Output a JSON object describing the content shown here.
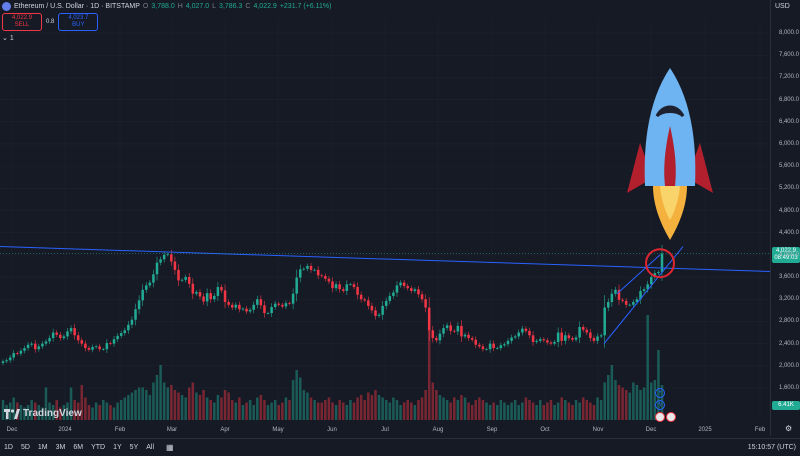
{
  "legend": {
    "title": "Ethereum / U.S. Dollar · 1D · BITSTAMP",
    "o_label": "O",
    "o_value": "3,788.0",
    "h_label": "H",
    "h_value": "4,027.0",
    "l_label": "L",
    "l_value": "3,786.3",
    "c_label": "C",
    "c_value": "4,022.9",
    "change": "+231.7 (+6.11%)"
  },
  "trade": {
    "sell_price": "4,022.9",
    "sell_label": "SELL",
    "spread": "0.8",
    "buy_price": "4,023.7",
    "buy_label": "BUY"
  },
  "indicator_count": "1",
  "currency": "USD",
  "price_axis": {
    "ticks": [
      "8,000.0",
      "7,600.0",
      "7,200.0",
      "6,800.0",
      "6,400.0",
      "6,000.0",
      "5,600.0",
      "5,200.0",
      "4,800.0",
      "4,400.0",
      "4,000.0",
      "3,600.0",
      "3,200.0",
      "2,800.0",
      "2,400.0",
      "2,000.0",
      "1,600.0"
    ],
    "current_price": "4,022.9",
    "countdown": "08:49:03",
    "volume_label": "6.41K"
  },
  "time_axis": {
    "ticks": [
      "Dec",
      "2024",
      "Feb",
      "Mar",
      "Apr",
      "May",
      "Jun",
      "Jul",
      "Aug",
      "Sep",
      "Oct",
      "Nov",
      "Dec",
      "2025",
      "Feb"
    ]
  },
  "brand": "TradingView",
  "timeframes": [
    "1D",
    "5D",
    "1M",
    "3M",
    "6M",
    "YTD",
    "1Y",
    "5Y",
    "All"
  ],
  "clock": "15:10:57 (UTC)",
  "colors": {
    "up": "#22ab94",
    "down": "#f23645",
    "line": "#2962ff",
    "accent": "#2962ff"
  },
  "chart_data": {
    "type": "candlestick",
    "price_range": [
      1600,
      8000
    ],
    "trendline": {
      "from": {
        "date": "2023-12-01",
        "price": 4150
      },
      "to": {
        "date": "2024-12-31",
        "price": 3700
      }
    },
    "support_line": {
      "from": {
        "date": "2024-11-01",
        "price": 2400
      },
      "to": {
        "date": "2024-12-07",
        "price": 4150
      }
    },
    "close": [
      2080,
      2100,
      2150,
      2230,
      2220,
      2270,
      2320,
      2380,
      2400,
      2300,
      2350,
      2400,
      2440,
      2500,
      2600,
      2560,
      2500,
      2530,
      2620,
      2680,
      2550,
      2460,
      2400,
      2320,
      2290,
      2340,
      2350,
      2300,
      2300,
      2410,
      2400,
      2480,
      2540,
      2590,
      2640,
      2740,
      2830,
      3020,
      3180,
      3370,
      3450,
      3500,
      3650,
      3860,
      3920,
      4000,
      4010,
      3880,
      3730,
      3540,
      3550,
      3600,
      3480,
      3300,
      3330,
      3250,
      3160,
      3310,
      3200,
      3260,
      3420,
      3360,
      3150,
      3100,
      3050,
      3100,
      3020,
      3030,
      2980,
      3010,
      3100,
      3200,
      3090,
      2950,
      2950,
      3060,
      3120,
      3100,
      3070,
      3130,
      3120,
      3300,
      3590,
      3740,
      3750,
      3800,
      3730,
      3730,
      3630,
      3620,
      3570,
      3520,
      3400,
      3470,
      3380,
      3350,
      3470,
      3470,
      3420,
      3280,
      3200,
      3180,
      3080,
      3000,
      2900,
      2920,
      3080,
      3170,
      3260,
      3320,
      3450,
      3500,
      3440,
      3400,
      3350,
      3380,
      3290,
      3200,
      3050,
      2640,
      2500,
      2460,
      2580,
      2680,
      2730,
      2630,
      2620,
      2720,
      2530,
      2560,
      2500,
      2470,
      2380,
      2350,
      2300,
      2300,
      2400,
      2320,
      2320,
      2370,
      2390,
      2450,
      2510,
      2530,
      2600,
      2670,
      2630,
      2550,
      2430,
      2450,
      2480,
      2460,
      2420,
      2400,
      2430,
      2600,
      2450,
      2550,
      2500,
      2470,
      2510,
      2700,
      2650,
      2600,
      2500,
      2450,
      2530,
      2550,
      3050,
      3150,
      3300,
      3370,
      3190,
      3170,
      3100,
      3100,
      3150,
      3200,
      3350,
      3380,
      3470,
      3600,
      3670,
      3690,
      4023
    ],
    "volume": [
      0.8,
      0.6,
      0.7,
      0.9,
      0.7,
      0.6,
      0.5,
      0.6,
      0.8,
      0.7,
      0.6,
      0.5,
      1.3,
      0.7,
      0.6,
      0.8,
      0.5,
      0.6,
      0.7,
      1.3,
      0.8,
      0.7,
      1.4,
      0.9,
      0.6,
      0.5,
      0.7,
      0.6,
      0.8,
      0.7,
      0.6,
      0.5,
      0.7,
      0.8,
      0.9,
      1.0,
      1.1,
      1.2,
      1.3,
      1.3,
      1.2,
      1.0,
      1.5,
      1.8,
      2.2,
      1.5,
      1.3,
      1.4,
      1.2,
      1.1,
      1.0,
      0.9,
      1.3,
      1.5,
      1.1,
      1.0,
      1.2,
      0.9,
      0.8,
      0.7,
      1.0,
      0.9,
      1.2,
      1.1,
      0.8,
      0.7,
      0.9,
      0.6,
      0.7,
      0.8,
      0.6,
      0.9,
      1.0,
      0.8,
      0.6,
      0.7,
      0.8,
      0.6,
      0.7,
      0.9,
      0.8,
      1.6,
      2.0,
      1.7,
      1.2,
      1.1,
      0.9,
      0.8,
      0.7,
      0.7,
      0.8,
      0.9,
      0.7,
      0.6,
      0.8,
      0.7,
      0.6,
      0.8,
      0.7,
      0.9,
      1.0,
      0.8,
      1.1,
      1.0,
      1.2,
      1.0,
      0.9,
      0.8,
      0.7,
      0.9,
      0.8,
      0.6,
      0.7,
      0.8,
      0.7,
      0.6,
      0.8,
      0.9,
      1.2,
      4.0,
      1.5,
      1.2,
      1.0,
      0.9,
      0.8,
      0.7,
      0.9,
      0.8,
      1.0,
      0.9,
      0.7,
      0.6,
      0.8,
      0.9,
      0.8,
      0.7,
      0.6,
      0.7,
      0.6,
      0.8,
      0.7,
      0.6,
      0.7,
      0.8,
      0.6,
      0.7,
      0.9,
      0.8,
      0.7,
      0.6,
      0.8,
      0.6,
      0.7,
      0.8,
      0.6,
      0.7,
      0.9,
      0.8,
      0.7,
      0.6,
      0.8,
      0.7,
      0.9,
      0.8,
      0.7,
      0.6,
      0.9,
      0.8,
      1.5,
      1.8,
      2.2,
      1.6,
      1.4,
      1.3,
      1.2,
      1.1,
      1.5,
      1.4,
      1.2,
      1.3,
      4.2,
      1.5,
      1.6,
      2.8,
      1.4
    ]
  }
}
